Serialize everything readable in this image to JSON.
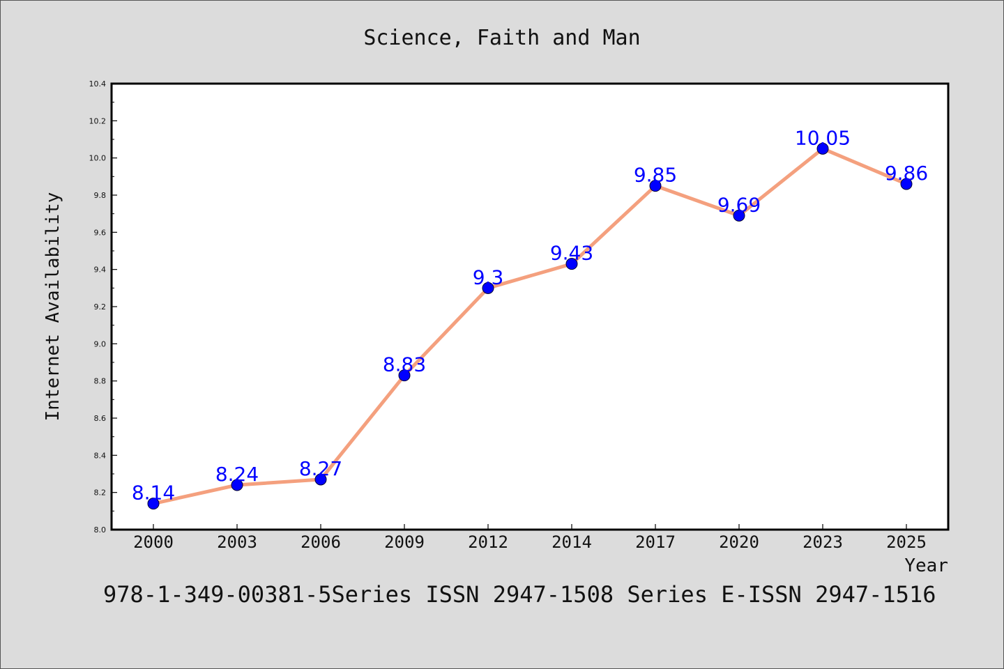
{
  "colors": {
    "background": "#dcdcdc",
    "plot_background": "#ffffff",
    "line": "#f4a07e",
    "marker": "#0000ff",
    "data_label": "#0000ff",
    "text": "#111111"
  },
  "footer": {
    "text": "978-1-349-00381-5Series ISSN 2947-1508 Series E-ISSN 2947-1516"
  },
  "chart_data": {
    "type": "line",
    "title": "Science, Faith and Man",
    "xlabel": "Year",
    "ylabel": "Internet Availability",
    "categories": [
      "2000",
      "2003",
      "2006",
      "2009",
      "2012",
      "2014",
      "2017",
      "2020",
      "2023",
      "2025"
    ],
    "series": [
      {
        "values": [
          8.14,
          8.24,
          8.27,
          8.83,
          9.3,
          9.43,
          9.85,
          9.69,
          10.05,
          9.86
        ]
      }
    ],
    "data_labels": [
      "8.14",
      "8.24",
      "8.27",
      "8.83",
      "9.3",
      "9.43",
      "9.85",
      "9.69",
      "10.05",
      "9.86"
    ],
    "ylim": [
      8.0,
      10.4
    ],
    "yticks": [
      "8.0",
      "8.2",
      "8.4",
      "8.6",
      "8.8",
      "9.0",
      "9.2",
      "9.4",
      "9.6",
      "9.8",
      "10.0",
      "10.2",
      "10.4"
    ],
    "grid": false,
    "legend": "none"
  }
}
